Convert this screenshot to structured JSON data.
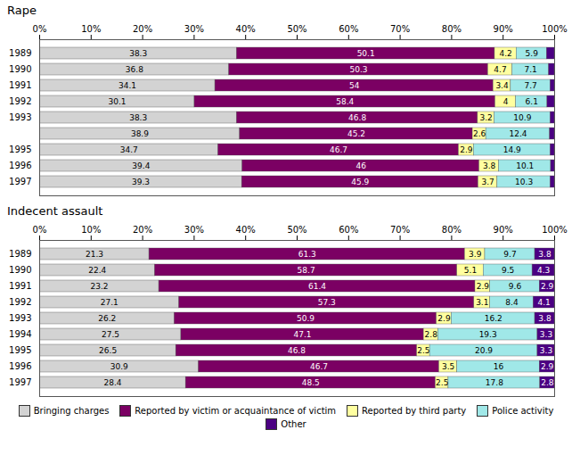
{
  "chart_data": [
    {
      "type": "bar",
      "orientation": "horizontal",
      "stacked": true,
      "title": "Rape",
      "categories": [
        "1989",
        "1990",
        "1991",
        "1992",
        "1993",
        null,
        "1995",
        "1996",
        "1997"
      ],
      "xlim": [
        0,
        100
      ],
      "xticks": [
        {
          "value": 0,
          "label": "0%"
        },
        {
          "value": 10,
          "label": "10%"
        },
        {
          "value": 20,
          "label": "20%"
        },
        {
          "value": 30,
          "label": "30%"
        },
        {
          "value": 40,
          "label": "40%"
        },
        {
          "value": 50,
          "label": "50%"
        },
        {
          "value": 60,
          "label": "60%"
        },
        {
          "value": 70,
          "label": "70%"
        },
        {
          "value": 80,
          "label": "80%"
        },
        {
          "value": 90,
          "label": "90%"
        },
        {
          "value": 100,
          "label": "100%"
        }
      ],
      "grid": false,
      "data_labels": true,
      "series": [
        {
          "name": "Bringing charges",
          "color": "#d3d3d3",
          "values": [
            38.3,
            36.8,
            34.1,
            30.1,
            38.3,
            38.9,
            34.7,
            39.4,
            39.3
          ],
          "value_labels": [
            "38.3",
            "36.8",
            "34.1",
            "30.1",
            "38.3",
            "38.9",
            "34.7",
            "39.4",
            "39.3"
          ]
        },
        {
          "name": "Reported by victim or acquaintance of victim",
          "color": "#7b0063",
          "values": [
            50.1,
            50.3,
            54.0,
            58.4,
            46.8,
            45.2,
            46.7,
            46.0,
            45.9
          ],
          "value_labels": [
            "50.1",
            "50.3",
            "54",
            "58.4",
            "46.8",
            "45.2",
            "46.7",
            "46",
            "45.9"
          ]
        },
        {
          "name": "Reported by third party",
          "color": "#ffffa0",
          "values": [
            4.2,
            4.7,
            3.4,
            4.0,
            3.2,
            2.6,
            2.9,
            3.8,
            3.7
          ],
          "value_labels": [
            "4.2",
            "4.7",
            "3.4",
            "4",
            "3.2",
            "2.6",
            "2.9",
            "3.8",
            "3.7"
          ]
        },
        {
          "name": "Police activity",
          "color": "#a0e8e8",
          "values": [
            5.9,
            7.1,
            7.7,
            6.1,
            10.9,
            12.4,
            14.9,
            10.1,
            10.3
          ],
          "value_labels": [
            "5.9",
            "7.1",
            "7.7",
            "6.1",
            "10.9",
            "12.4",
            "14.9",
            "10.1",
            "10.3"
          ]
        },
        {
          "name": "Other",
          "color": "#4b0082",
          "values": [
            1.5,
            1.1,
            0.8,
            1.4,
            0.8,
            0.9,
            0.8,
            0.7,
            0.8
          ],
          "value_labels": [
            null,
            null,
            null,
            null,
            null,
            null,
            null,
            null,
            null
          ]
        }
      ]
    },
    {
      "type": "bar",
      "orientation": "horizontal",
      "stacked": true,
      "title": "Indecent assault",
      "categories": [
        "1989",
        "1990",
        "1991",
        "1992",
        "1993",
        "1994",
        "1995",
        "1996",
        "1997"
      ],
      "xlim": [
        0,
        100
      ],
      "xticks": [
        {
          "value": 0,
          "label": "0%"
        },
        {
          "value": 10,
          "label": "10%"
        },
        {
          "value": 20,
          "label": "20%"
        },
        {
          "value": 30,
          "label": "30%"
        },
        {
          "value": 40,
          "label": "40%"
        },
        {
          "value": 50,
          "label": "50%"
        },
        {
          "value": 60,
          "label": "60%"
        },
        {
          "value": 70,
          "label": "70%"
        },
        {
          "value": 80,
          "label": "80%"
        },
        {
          "value": 90,
          "label": "90%"
        },
        {
          "value": 100,
          "label": "100%"
        }
      ],
      "grid": false,
      "data_labels": true,
      "series": [
        {
          "name": "Bringing charges",
          "color": "#d3d3d3",
          "values": [
            21.3,
            22.4,
            23.2,
            27.1,
            26.2,
            27.5,
            26.5,
            30.9,
            28.4
          ],
          "value_labels": [
            "21.3",
            "22.4",
            "23.2",
            "27.1",
            "26.2",
            "27.5",
            "26.5",
            "30.9",
            "28.4"
          ]
        },
        {
          "name": "Reported by victim or acquaintance of victim",
          "color": "#7b0063",
          "values": [
            61.3,
            58.7,
            61.4,
            57.3,
            50.9,
            47.1,
            46.8,
            46.7,
            48.5
          ],
          "value_labels": [
            "61.3",
            "58.7",
            "61.4",
            "57.3",
            "50.9",
            "47.1",
            "46.8",
            "46.7",
            "48.5"
          ]
        },
        {
          "name": "Reported by third party",
          "color": "#ffffa0",
          "values": [
            3.9,
            5.1,
            2.9,
            3.1,
            2.9,
            2.8,
            2.5,
            3.5,
            2.5
          ],
          "value_labels": [
            "3.9",
            "5.1",
            "2.9",
            "3.1",
            "2.9",
            "2.8",
            "2.5",
            "3.5",
            "2.5"
          ]
        },
        {
          "name": "Police activity",
          "color": "#a0e8e8",
          "values": [
            9.7,
            9.5,
            9.6,
            8.4,
            16.2,
            19.3,
            20.9,
            16.0,
            17.8
          ],
          "value_labels": [
            "9.7",
            "9.5",
            "9.6",
            "8.4",
            "16.2",
            "19.3",
            "20.9",
            "16",
            "17.8"
          ]
        },
        {
          "name": "Other",
          "color": "#4b0082",
          "values": [
            3.8,
            4.3,
            2.9,
            4.1,
            3.8,
            3.3,
            3.3,
            2.9,
            2.8
          ],
          "value_labels": [
            "3.8",
            "4.3",
            "2.9",
            "4.1",
            "3.8",
            "3.3",
            "3.3",
            "2.9",
            "2.8"
          ]
        }
      ]
    }
  ]
}
